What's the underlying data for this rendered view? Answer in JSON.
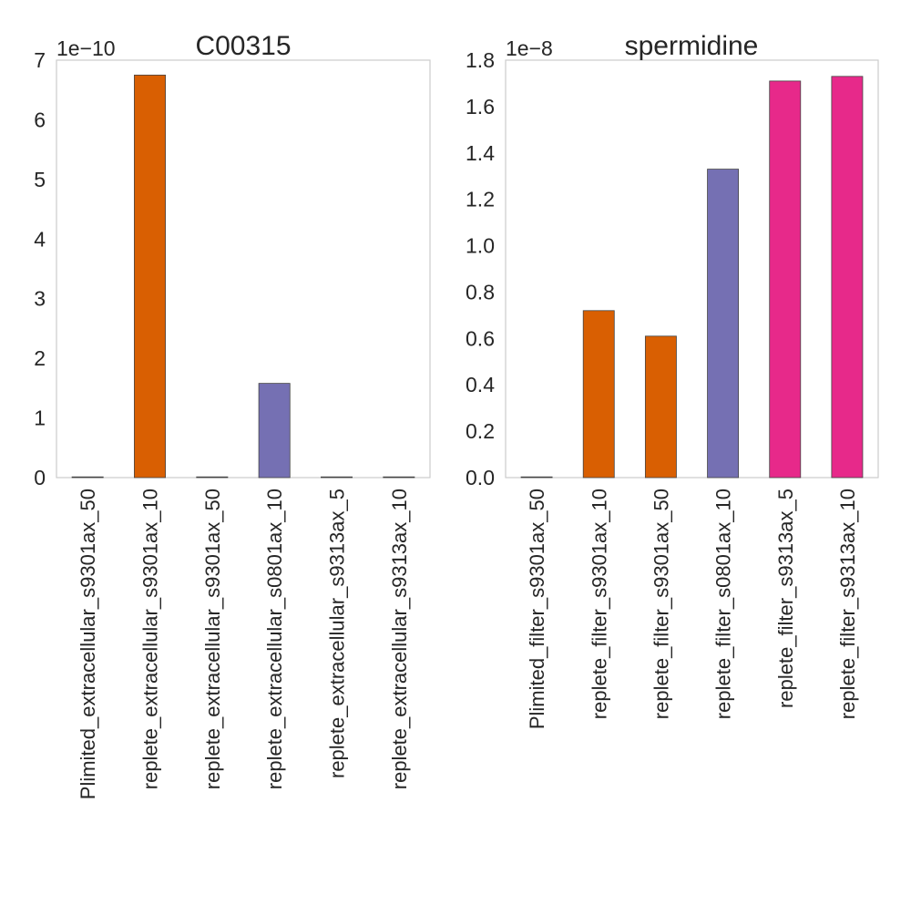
{
  "chart_data": [
    {
      "type": "bar",
      "title": "C00315",
      "offset_label": "1e−10",
      "categories": [
        "Plimited_extracellular_s9301ax_50",
        "replete_extracellular_s9301ax_10",
        "replete_extracellular_s9301ax_50",
        "replete_extracellular_s0801ax_10",
        "replete_extracellular_s9313ax_5",
        "replete_extracellular_s9313ax_10"
      ],
      "values": [
        0,
        6.75e-10,
        0,
        1.58e-10,
        0,
        0
      ],
      "colors": [
        "#1b9e77",
        "#d95f02",
        "#d95f02",
        "#7570b3",
        "#e7298a",
        "#e7298a"
      ],
      "ylim": [
        0,
        7e-10
      ],
      "yticks": [
        0,
        1e-10,
        2e-10,
        3e-10,
        4e-10,
        5e-10,
        6e-10,
        7e-10
      ],
      "ytick_labels": [
        "0",
        "1",
        "2",
        "3",
        "4",
        "5",
        "6",
        "7"
      ],
      "grid": false,
      "xlabel": "",
      "ylabel": ""
    },
    {
      "type": "bar",
      "title": "spermidine",
      "offset_label": "1e−8",
      "categories": [
        "Plimited_filter_s9301ax_50",
        "replete_filter_s9301ax_10",
        "replete_filter_s9301ax_50",
        "replete_filter_s0801ax_10",
        "replete_filter_s9313ax_5",
        "replete_filter_s9313ax_10"
      ],
      "values": [
        0,
        7.2e-09,
        6.1e-09,
        1.33e-08,
        1.71e-08,
        1.73e-08
      ],
      "colors": [
        "#1b9e77",
        "#d95f02",
        "#d95f02",
        "#7570b3",
        "#e7298a",
        "#e7298a"
      ],
      "ylim": [
        0,
        1.8e-08
      ],
      "yticks": [
        0,
        2e-09,
        4e-09,
        6e-09,
        8e-09,
        1e-08,
        1.2e-08,
        1.4e-08,
        1.6e-08,
        1.8e-08
      ],
      "ytick_labels": [
        "0.0",
        "0.2",
        "0.4",
        "0.6",
        "0.8",
        "1.0",
        "1.2",
        "1.4",
        "1.6",
        "1.8"
      ],
      "grid": false,
      "xlabel": "",
      "ylabel": ""
    }
  ]
}
